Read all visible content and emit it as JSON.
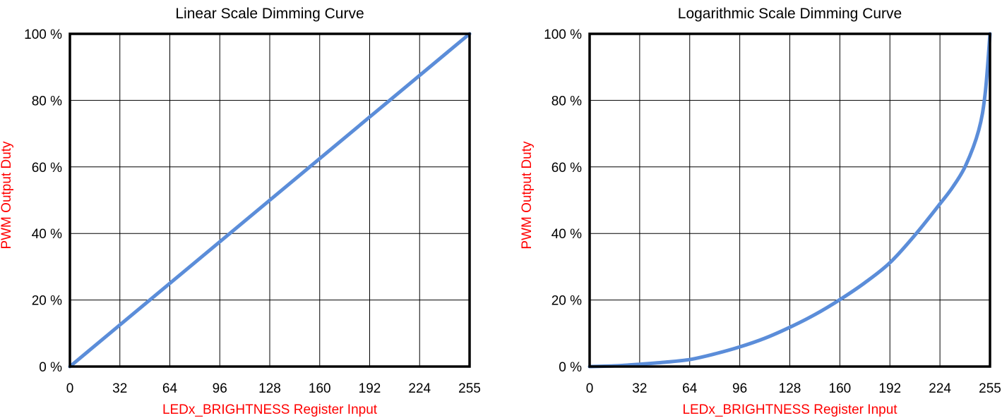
{
  "chart_data": [
    {
      "type": "line",
      "title": "Linear Scale Dimming Curve",
      "xlabel": "LEDx_BRIGHTNESS Register Input",
      "ylabel": "PWM Output Duty",
      "x_ticks": [
        "0",
        "32",
        "64",
        "96",
        "128",
        "160",
        "192",
        "224",
        "255"
      ],
      "y_ticks": [
        "0 %",
        "20 %",
        "40 %",
        "60 %",
        "80 %",
        "100 %"
      ],
      "xlim": [
        0,
        255
      ],
      "ylim": [
        0,
        100
      ],
      "grid": true,
      "line_color": "#5b8dd9",
      "series": [
        {
          "x": [
            0,
            255
          ],
          "y": [
            0,
            100
          ]
        }
      ]
    },
    {
      "type": "line",
      "title": "Logarithmic Scale Dimming Curve",
      "xlabel": "LEDx_BRIGHTNESS Register Input",
      "ylabel": "PWM Output Duty",
      "x_ticks": [
        "0",
        "32",
        "64",
        "96",
        "128",
        "160",
        "192",
        "224",
        "255"
      ],
      "y_ticks": [
        "0 %",
        "20 %",
        "40 %",
        "60 %",
        "80 %",
        "100 %"
      ],
      "xlim": [
        0,
        255
      ],
      "ylim": [
        0,
        100
      ],
      "grid": true,
      "line_color": "#5b8dd9",
      "series": [
        {
          "x": [
            0,
            16,
            32,
            48,
            64,
            80,
            96,
            112,
            128,
            144,
            160,
            176,
            192,
            208,
            224,
            232,
            240,
            248,
            252,
            255
          ],
          "y": [
            0,
            0.2,
            0.7,
            1.3,
            2.1,
            3.8,
            5.9,
            8.5,
            11.8,
            15.6,
            20.1,
            25.2,
            31.2,
            39.5,
            48.9,
            54,
            60.5,
            71,
            82,
            100
          ]
        }
      ]
    }
  ]
}
